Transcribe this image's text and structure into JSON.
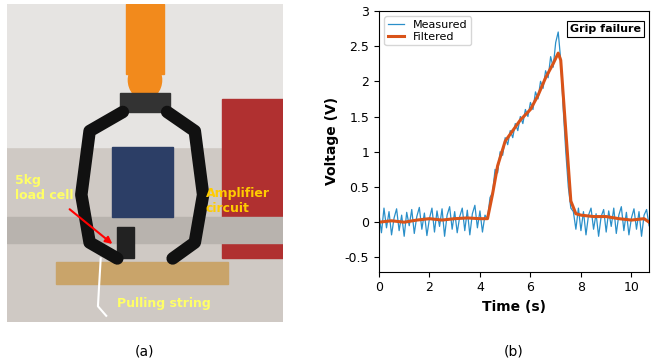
{
  "figure": {
    "panel_labels": [
      "(a)",
      "(b)"
    ],
    "photo_labels": [
      "5kg\nload cell",
      "Amplifier\ncircuit",
      "Pulling string"
    ]
  },
  "chart_data": {
    "type": "line",
    "x_label": "Time (s)",
    "y_label": "Voltage (V)",
    "xlim": [
      0,
      10.7
    ],
    "xticks": [
      0,
      2,
      4,
      6,
      8,
      10
    ],
    "ylim": [
      -0.7,
      3
    ],
    "yticks": [
      -0.5,
      0,
      0.5,
      1,
      1.5,
      2,
      2.5,
      3
    ],
    "legend": "upper left",
    "annotations": [
      "Grip failure"
    ],
    "series": [
      {
        "name": "Measured",
        "color": "#2a8fc9",
        "x": [
          0.0,
          0.1,
          0.2,
          0.3,
          0.4,
          0.5,
          0.6,
          0.7,
          0.8,
          0.9,
          1.0,
          1.1,
          1.2,
          1.3,
          1.4,
          1.5,
          1.6,
          1.7,
          1.8,
          1.9,
          2.0,
          2.1,
          2.2,
          2.3,
          2.4,
          2.5,
          2.6,
          2.7,
          2.8,
          2.9,
          3.0,
          3.1,
          3.2,
          3.3,
          3.4,
          3.5,
          3.6,
          3.7,
          3.8,
          3.9,
          4.0,
          4.1,
          4.2,
          4.3,
          4.4,
          4.5,
          4.6,
          4.7,
          4.8,
          4.9,
          5.0,
          5.1,
          5.2,
          5.3,
          5.4,
          5.5,
          5.6,
          5.7,
          5.8,
          5.9,
          6.0,
          6.1,
          6.2,
          6.3,
          6.4,
          6.5,
          6.6,
          6.7,
          6.8,
          6.9,
          7.0,
          7.1,
          7.2,
          7.3,
          7.4,
          7.5,
          7.6,
          7.7,
          7.8,
          7.9,
          8.0,
          8.1,
          8.2,
          8.3,
          8.4,
          8.5,
          8.6,
          8.7,
          8.8,
          8.9,
          9.0,
          9.1,
          9.2,
          9.3,
          9.4,
          9.5,
          9.6,
          9.7,
          9.8,
          9.9,
          10.0,
          10.1,
          10.2,
          10.3,
          10.4,
          10.5,
          10.6,
          10.7
        ],
        "values": [
          0.12,
          -0.15,
          0.2,
          -0.08,
          0.15,
          -0.18,
          0.06,
          0.19,
          -0.12,
          0.1,
          -0.2,
          0.14,
          -0.05,
          0.18,
          -0.16,
          0.08,
          0.21,
          -0.1,
          0.13,
          -0.19,
          0.05,
          0.2,
          -0.14,
          0.16,
          -0.06,
          0.19,
          -0.2,
          0.1,
          0.22,
          -0.1,
          0.15,
          -0.15,
          0.08,
          0.2,
          -0.12,
          0.17,
          -0.18,
          0.12,
          0.24,
          -0.08,
          0.16,
          -0.14,
          0.1,
          0.05,
          0.35,
          0.42,
          0.75,
          0.7,
          1.0,
          0.95,
          1.2,
          1.1,
          1.3,
          1.2,
          1.4,
          1.3,
          1.5,
          1.4,
          1.6,
          1.5,
          1.7,
          1.6,
          1.85,
          1.75,
          2.0,
          1.9,
          2.15,
          2.05,
          2.35,
          2.2,
          2.55,
          2.7,
          2.3,
          1.6,
          1.0,
          0.5,
          0.2,
          0.15,
          -0.1,
          0.2,
          -0.12,
          0.15,
          -0.18,
          0.1,
          0.2,
          -0.1,
          0.12,
          -0.2,
          0.08,
          0.18,
          -0.14,
          0.16,
          -0.06,
          0.2,
          -0.16,
          0.1,
          0.22,
          -0.12,
          0.14,
          -0.18,
          0.06,
          0.19,
          -0.1,
          0.15,
          -0.2,
          0.1,
          0.18,
          -0.05
        ]
      },
      {
        "name": "Filtered",
        "color": "#d95319",
        "x": [
          0,
          0.5,
          1,
          1.5,
          2,
          2.5,
          3,
          3.5,
          4,
          4.3,
          4.5,
          4.7,
          5.0,
          5.3,
          5.6,
          6.0,
          6.3,
          6.6,
          6.9,
          7.1,
          7.2,
          7.4,
          7.6,
          7.8,
          8.0,
          8.5,
          9,
          9.5,
          10,
          10.5,
          10.7
        ],
        "values": [
          0,
          0.02,
          0,
          0.03,
          0.05,
          0.03,
          0.05,
          0.06,
          0.05,
          0.05,
          0.4,
          0.8,
          1.15,
          1.3,
          1.45,
          1.6,
          1.8,
          2.05,
          2.25,
          2.4,
          2.3,
          1.3,
          0.3,
          0.12,
          0.1,
          0.08,
          0.08,
          0.05,
          0.03,
          0.05,
          0.0
        ]
      }
    ]
  }
}
